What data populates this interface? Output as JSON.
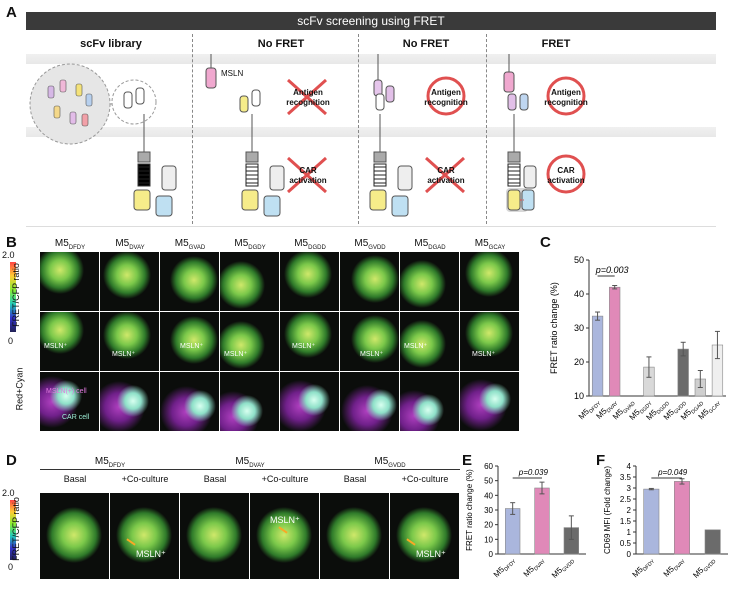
{
  "panelA": {
    "label": "A",
    "header": "scFv screening using FRET",
    "col_titles": [
      "scFv library",
      "No FRET",
      "No FRET",
      "FRET"
    ],
    "mesln_label": "MSLN",
    "antigen_label": [
      "Antigen",
      "recognition"
    ],
    "car_label": [
      "CAR",
      "activation"
    ]
  },
  "panelB": {
    "label": "B",
    "cols": [
      {
        "base": "M5",
        "sub": "DFDY"
      },
      {
        "base": "M5",
        "sub": "DVAY"
      },
      {
        "base": "M5",
        "sub": "GVAD"
      },
      {
        "base": "M5",
        "sub": "DGDY"
      },
      {
        "base": "M5",
        "sub": "DGDD"
      },
      {
        "base": "M5",
        "sub": "GVDD"
      },
      {
        "base": "M5",
        "sub": "DGAD"
      },
      {
        "base": "M5",
        "sub": "GCAY"
      }
    ],
    "colorbar_max": "2.0",
    "colorbar_min": "0",
    "colorbar_label": "FRET/CFP ratio",
    "row3_label": "Red+Cyan",
    "msln_cell": "MSLN(+) cell",
    "car_cell": "CAR cell",
    "msln_plus": "MSLN⁺"
  },
  "panelC": {
    "label": "C",
    "chart_data": {
      "type": "bar",
      "categories": [
        "M5DFDY",
        "M5DVAY",
        "M5GVAD",
        "M5DGDY",
        "M5DGDD",
        "M5GVDD",
        "M5DGAD",
        "M5GCAY"
      ],
      "cat_base": [
        "M5",
        "M5",
        "M5",
        "M5",
        "M5",
        "M5",
        "M5",
        "M5"
      ],
      "cat_sub": [
        "DFDY",
        "DVAY",
        "GVAD",
        "DGDY",
        "DGDD",
        "GVDD",
        "DGAD",
        "GCAY"
      ],
      "values": [
        33.5,
        42,
        10,
        18.5,
        10,
        23.8,
        15,
        25
      ],
      "errors": [
        1.2,
        0.5,
        0,
        3,
        0,
        2,
        2.5,
        4
      ],
      "colors": [
        "#aab6dd",
        "#e089b8",
        "#ffffff",
        "#d9d9d9",
        "#ffffff",
        "#6b6b6b",
        "#cfcfcf",
        "#efefef"
      ],
      "ylabel": "FRET ratio change (%)",
      "ylim": [
        10,
        50
      ],
      "yticks": [
        10,
        20,
        30,
        40,
        50
      ],
      "annotation": "p=0.003"
    }
  },
  "panelD": {
    "label": "D",
    "groups": [
      {
        "base": "M5",
        "sub": "DFDY"
      },
      {
        "base": "M5",
        "sub": "DVAY"
      },
      {
        "base": "M5",
        "sub": "GVDD"
      }
    ],
    "conditions": [
      "Basal",
      "+Co-culture"
    ],
    "colorbar_max": "2.0",
    "colorbar_min": "0",
    "colorbar_label": "FRET/CFP ratio",
    "msln_plus": "MSLN⁺"
  },
  "panelE": {
    "label": "E",
    "chart_data": {
      "type": "bar",
      "categories": [
        "M5DFDY",
        "M5DVAY",
        "M5GVDD"
      ],
      "cat_base": [
        "M5",
        "M5",
        "M5"
      ],
      "cat_sub": [
        "DFDY",
        "DVAY",
        "GVDD"
      ],
      "values": [
        31,
        45,
        18
      ],
      "errors": [
        4,
        4,
        8
      ],
      "colors": [
        "#aab6dd",
        "#e089b8",
        "#6b6b6b"
      ],
      "ylabel": "FRET ratio change (%)",
      "ylim": [
        0,
        60
      ],
      "yticks": [
        0,
        10,
        20,
        30,
        40,
        50,
        60
      ],
      "annotation": "p=0.039"
    }
  },
  "panelF": {
    "label": "F",
    "chart_data": {
      "type": "bar",
      "categories": [
        "M5DFDY",
        "M5DVAY",
        "M5GVDD"
      ],
      "cat_base": [
        "M5",
        "M5",
        "M5"
      ],
      "cat_sub": [
        "DFDY",
        "DVAY",
        "GVDD"
      ],
      "values": [
        2.95,
        3.3,
        1.1
      ],
      "errors": [
        0.03,
        0.12,
        0
      ],
      "colors": [
        "#aab6dd",
        "#e089b8",
        "#6b6b6b"
      ],
      "ylabel": "CD69 MFI (Fold change)",
      "ylim": [
        0,
        4
      ],
      "yticks": [
        0,
        0.5,
        1,
        1.5,
        2,
        2.5,
        3,
        3.5,
        4
      ],
      "ytick_labels": [
        "0",
        "0.5",
        "1",
        "1.5",
        "2",
        "2.5",
        "3",
        "3.5",
        "4"
      ],
      "annotation": "p=0.049"
    }
  }
}
